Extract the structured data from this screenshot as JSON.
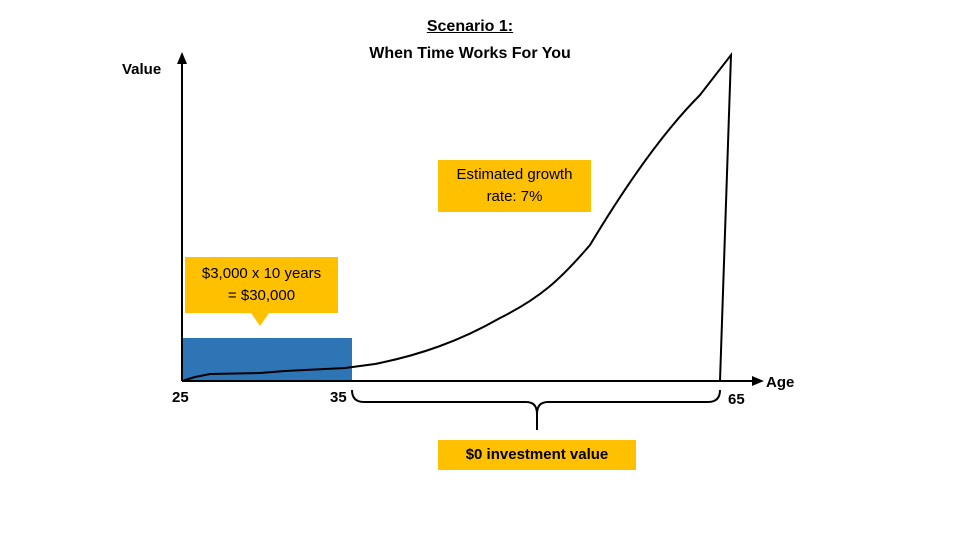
{
  "slide": {
    "title_line1": "Scenario 1:",
    "title_line2": "When Time Works For You"
  },
  "axes": {
    "y_label": "Value",
    "x_label": "Age",
    "x_ticks": [
      "25",
      "35",
      "65"
    ]
  },
  "callouts": {
    "contribution": {
      "line1": "$3,000 x 10 years",
      "line2": "= $30,000"
    },
    "growth": {
      "line1": "Estimated growth",
      "line2": "rate: 7%"
    },
    "zero_value": "$0 investment value"
  },
  "colors": {
    "contribution_bar": "#2e75b6",
    "callout": "#ffc000",
    "line": "#000000"
  }
}
